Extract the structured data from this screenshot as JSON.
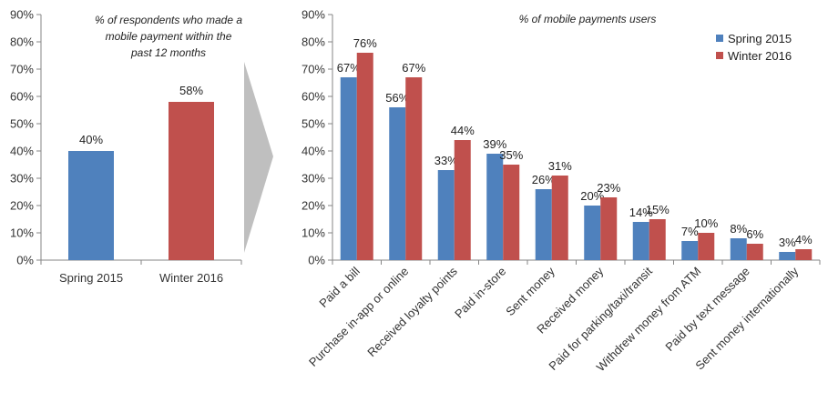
{
  "colors": {
    "spring": "#4F81BD",
    "winter": "#C0504D",
    "axis": "#868686",
    "arrow": "#BFBFBF"
  },
  "chart_data": [
    {
      "type": "bar",
      "title": "% of respondents who made a mobile payment within the past 12 months",
      "title_lines": [
        "% of respondents who made a",
        "mobile payment within the",
        "past 12 months"
      ],
      "categories": [
        "Spring 2015",
        "Winter 2016"
      ],
      "values": [
        40,
        58
      ],
      "value_labels": [
        "40%",
        "58%"
      ],
      "series_colors": [
        "#4F81BD",
        "#C0504D"
      ],
      "ylim": [
        0,
        90
      ],
      "yticks": [
        "0%",
        "10%",
        "20%",
        "30%",
        "40%",
        "50%",
        "60%",
        "70%",
        "80%",
        "90%"
      ],
      "grid": false
    },
    {
      "type": "bar",
      "title": "% of mobile payments users",
      "categories": [
        "Paid a bill",
        "Purchase in-app or online",
        "Received loyalty points",
        "Paid in-store",
        "Sent money",
        "Received money",
        "Paid for parking/taxi/transit",
        "Withdrew money from ATM",
        "Paid by text message",
        "Sent money internationally"
      ],
      "series": [
        {
          "name": "Spring 2015",
          "color": "#4F81BD",
          "values": [
            67,
            56,
            33,
            39,
            26,
            20,
            14,
            7,
            8,
            3
          ]
        },
        {
          "name": "Winter 2016",
          "color": "#C0504D",
          "values": [
            76,
            67,
            44,
            35,
            31,
            23,
            15,
            10,
            6,
            4
          ]
        }
      ],
      "ylim": [
        0,
        90
      ],
      "yticks": [
        "0%",
        "10%",
        "20%",
        "30%",
        "40%",
        "50%",
        "60%",
        "70%",
        "80%",
        "90%"
      ],
      "legend_position": "top-right",
      "grid": false
    }
  ]
}
